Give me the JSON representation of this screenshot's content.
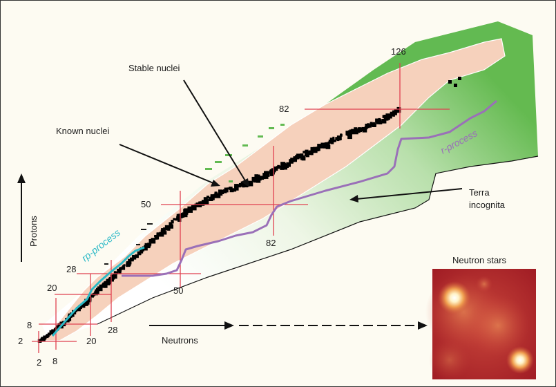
{
  "labels": {
    "stable_nuclei": "Stable nuclei",
    "known_nuclei": "Known nuclei",
    "terra_line1": "Terra",
    "terra_line2": "incognita",
    "protons": "Protons",
    "neutrons": "Neutrons",
    "neutron_stars": "Neutron stars",
    "rp_process": "rp-process",
    "r_process": "r-process"
  },
  "magic_numbers": {
    "proton": [
      "2",
      "8",
      "20",
      "28",
      "50",
      "82"
    ],
    "neutron": [
      "2",
      "8",
      "20",
      "28",
      "50",
      "82",
      "126"
    ]
  },
  "colors": {
    "known_region": "#f6d1bc",
    "unknown_region_light": "#f4f8ee",
    "unknown_region_green": "#62ba52",
    "stable_nuclei": "#000000",
    "magic_lines": "#e04050",
    "rp_process": "#2ab9c6",
    "r_process": "#9a70b8",
    "neutron_star_map": "#b9242b"
  },
  "icons": {
    "protons_arrow": "arrow-up-icon",
    "neutrons_arrow": "arrow-right-icon",
    "dashed_arrow": "dashed-arrow-right-icon"
  }
}
